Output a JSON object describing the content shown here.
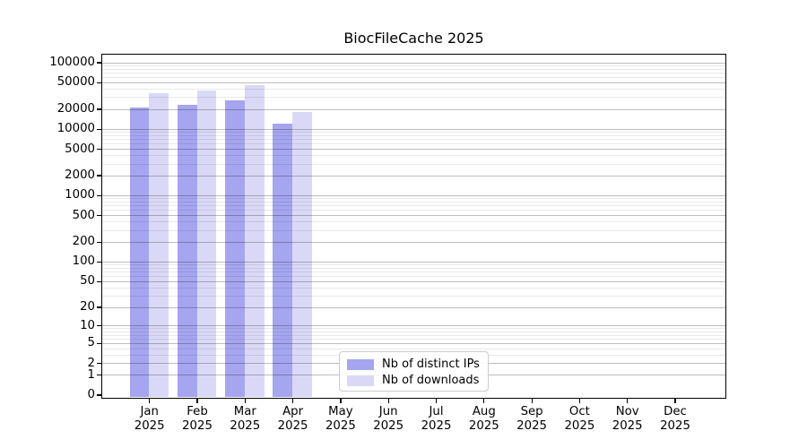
{
  "chart_data": {
    "type": "bar",
    "title": "BiocFileCache 2025",
    "xlabel": "",
    "ylabel": "",
    "year_label": "2025",
    "categories": [
      "Jan",
      "Feb",
      "Mar",
      "Apr",
      "May",
      "Jun",
      "Jul",
      "Aug",
      "Sep",
      "Oct",
      "Nov",
      "Dec"
    ],
    "series": [
      {
        "name": "Nb of distinct IPs",
        "color": "#a5a5f0",
        "values": [
          21000,
          23200,
          27000,
          12000,
          0,
          0,
          0,
          0,
          0,
          0,
          0,
          0
        ]
      },
      {
        "name": "Nb of downloads",
        "color": "#d9d9f7",
        "values": [
          34200,
          38000,
          45500,
          18000,
          0,
          0,
          0,
          0,
          0,
          0,
          0,
          0
        ]
      }
    ],
    "y_ticks": [
      {
        "value": 100000,
        "label": "100000"
      },
      {
        "value": 50000,
        "label": "50000"
      },
      {
        "value": 20000,
        "label": "20000"
      },
      {
        "value": 10000,
        "label": "10000"
      },
      {
        "value": 5000,
        "label": "5000"
      },
      {
        "value": 2000,
        "label": "2000"
      },
      {
        "value": 1000,
        "label": "1000"
      },
      {
        "value": 500,
        "label": "500"
      },
      {
        "value": 200,
        "label": "200"
      },
      {
        "value": 100,
        "label": "100"
      },
      {
        "value": 50,
        "label": "50"
      },
      {
        "value": 20,
        "label": "20"
      },
      {
        "value": 10,
        "label": "10"
      },
      {
        "value": 5,
        "label": "5"
      },
      {
        "value": 2,
        "label": "2"
      },
      {
        "value": 1,
        "label": "1"
      },
      {
        "value": 0,
        "label": "0"
      }
    ],
    "y_scale": "log10(value+1)",
    "ylim": [
      0,
      136000
    ],
    "grid": true,
    "legend_position": "bottom-center",
    "colors": {
      "distinct_ips_bar": "#a5a5f0",
      "downloads_bar": "#d9d9f7",
      "major_grid": "#bcbcbc",
      "minor_grid": "#e9e9e9",
      "axis": "#000000",
      "legend_border": "#cccccc"
    }
  }
}
